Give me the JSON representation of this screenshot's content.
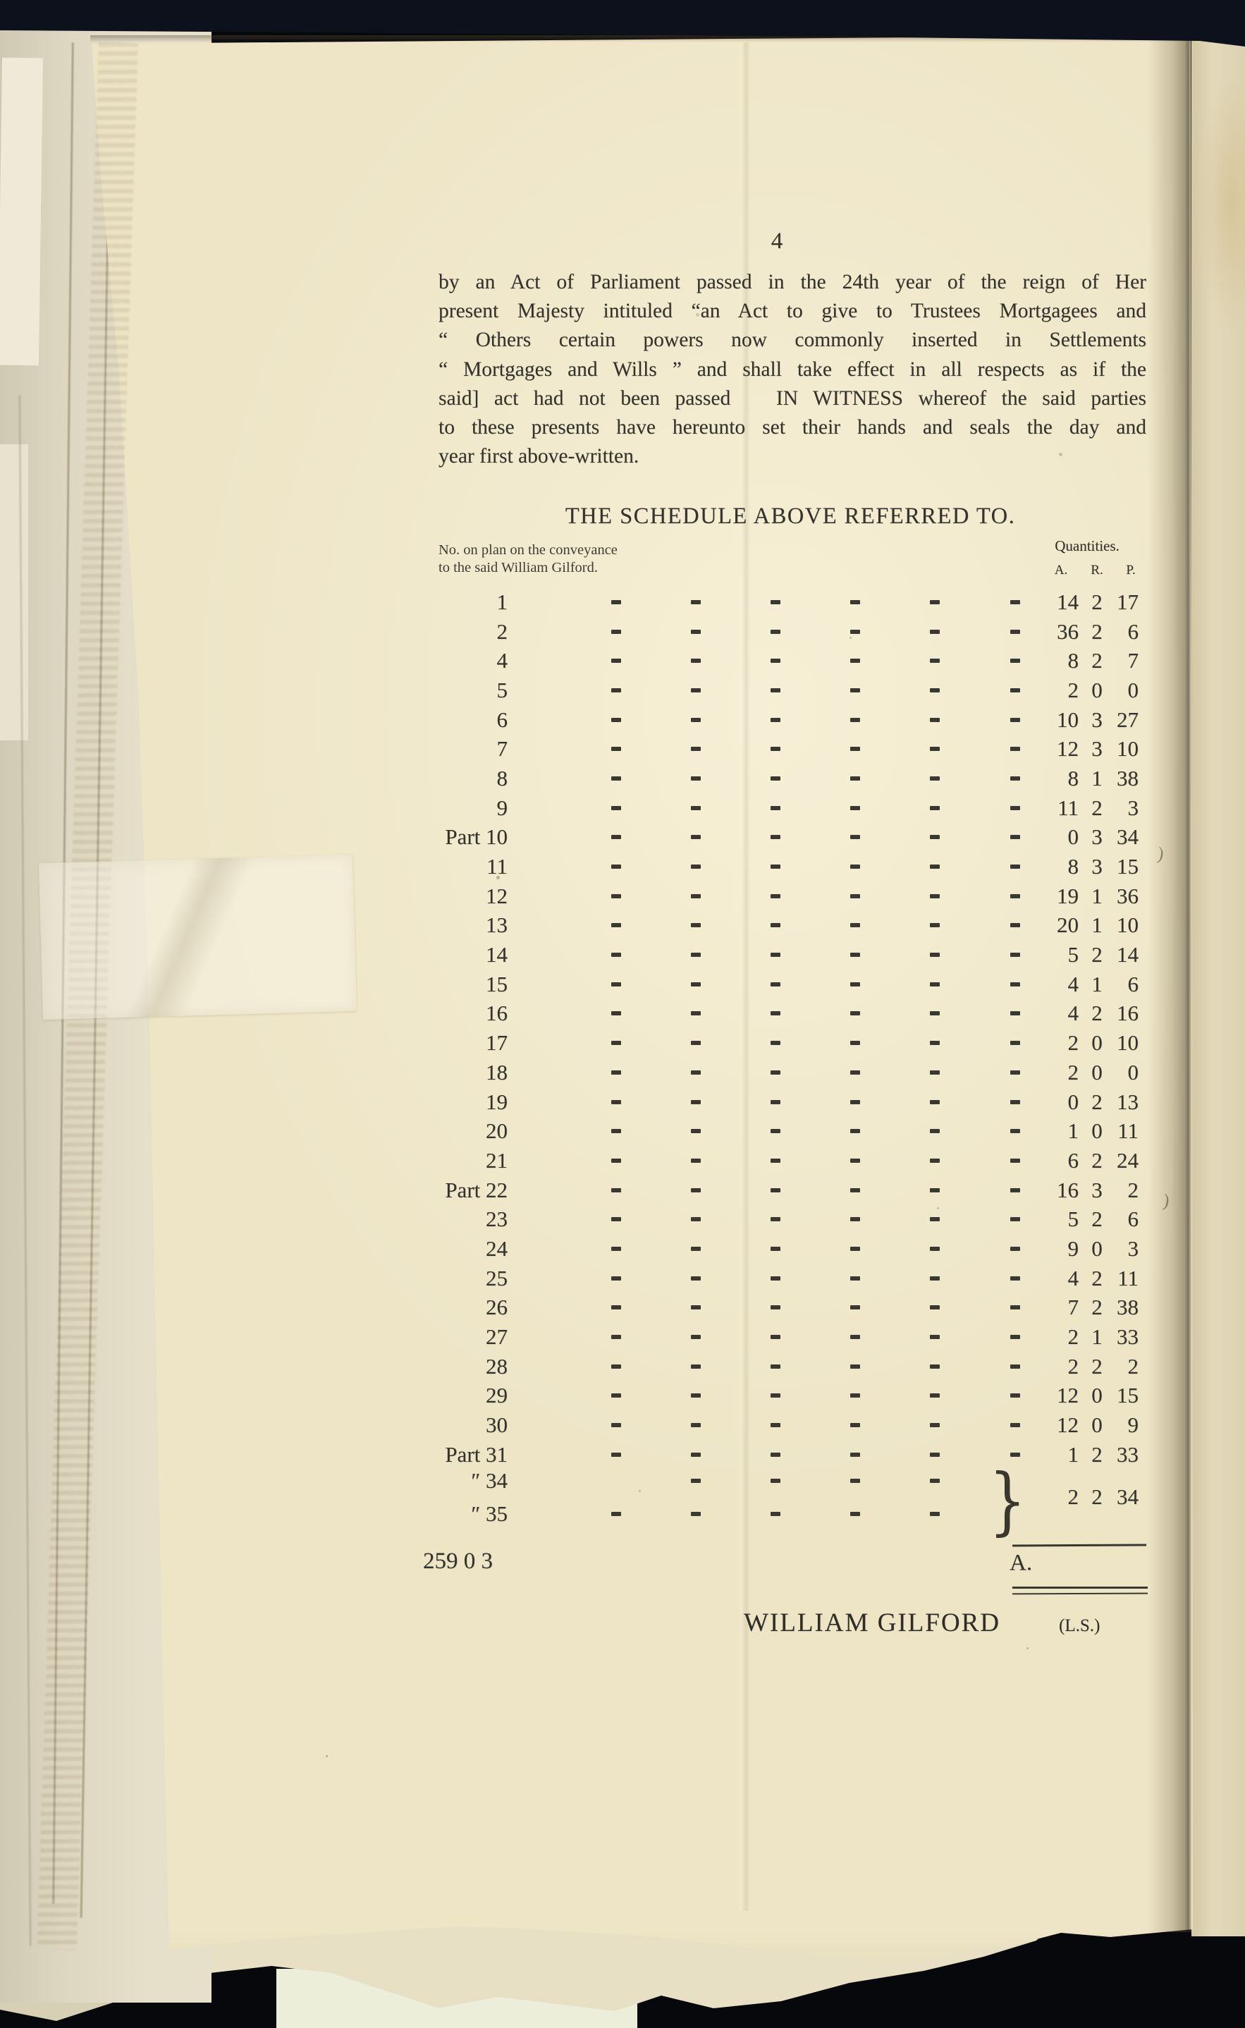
{
  "page": {
    "number": "4",
    "paragraph_lines": [
      "by an Act of Parliament passed in the 24th year of the reign of Her",
      "present Majesty intituled “an Act to give to Trustees Mortgagees and",
      "“ Others certain powers now commonly inserted in Settlements",
      "“ Mortgages and Wills ” and shall take effect in all respects as if the",
      "said] act had not been passed   IN WITNESS whereof the said parties",
      "to these presents have hereunto set their hands and seals the day and",
      "year first above-written."
    ],
    "schedule_title": "THE SCHEDULE ABOVE REFERRED TO.",
    "table": {
      "left_header_line1": "No. on plan on the conveyance",
      "left_header_line2": "to the said William Gilford.",
      "right_header": "Quantities.",
      "unit_headers": [
        "A.",
        "R.",
        "P."
      ],
      "rows": [
        {
          "plan": "1",
          "a": "14",
          "r": "2",
          "p": "17"
        },
        {
          "plan": "2",
          "a": "36",
          "r": "2",
          "p": "6"
        },
        {
          "plan": "4",
          "a": "8",
          "r": "2",
          "p": "7"
        },
        {
          "plan": "5",
          "a": "2",
          "r": "0",
          "p": "0"
        },
        {
          "plan": "6",
          "a": "10",
          "r": "3",
          "p": "27"
        },
        {
          "plan": "7",
          "a": "12",
          "r": "3",
          "p": "10"
        },
        {
          "plan": "8",
          "a": "8",
          "r": "1",
          "p": "38"
        },
        {
          "plan": "9",
          "a": "11",
          "r": "2",
          "p": "3"
        },
        {
          "plan": "Part 10",
          "a": "0",
          "r": "3",
          "p": "34"
        },
        {
          "plan": "11",
          "a": "8",
          "r": "3",
          "p": "15"
        },
        {
          "plan": "12",
          "a": "19",
          "r": "1",
          "p": "36"
        },
        {
          "plan": "13",
          "a": "20",
          "r": "1",
          "p": "10"
        },
        {
          "plan": "14",
          "a": "5",
          "r": "2",
          "p": "14"
        },
        {
          "plan": "15",
          "a": "4",
          "r": "1",
          "p": "6"
        },
        {
          "plan": "16",
          "a": "4",
          "r": "2",
          "p": "16"
        },
        {
          "plan": "17",
          "a": "2",
          "r": "0",
          "p": "10"
        },
        {
          "plan": "18",
          "a": "2",
          "r": "0",
          "p": "0"
        },
        {
          "plan": "19",
          "a": "0",
          "r": "2",
          "p": "13"
        },
        {
          "plan": "20",
          "a": "1",
          "r": "0",
          "p": "11"
        },
        {
          "plan": "21",
          "a": "6",
          "r": "2",
          "p": "24"
        },
        {
          "plan": "Part 22",
          "a": "16",
          "r": "3",
          "p": "2"
        },
        {
          "plan": "23",
          "a": "5",
          "r": "2",
          "p": "6"
        },
        {
          "plan": "24",
          "a": "9",
          "r": "0",
          "p": "3"
        },
        {
          "plan": "25",
          "a": "4",
          "r": "2",
          "p": "11"
        },
        {
          "plan": "26",
          "a": "7",
          "r": "2",
          "p": "38"
        },
        {
          "plan": "27",
          "a": "2",
          "r": "1",
          "p": "33"
        },
        {
          "plan": "28",
          "a": "2",
          "r": "2",
          "p": "2"
        },
        {
          "plan": "29",
          "a": "12",
          "r": "0",
          "p": "15"
        },
        {
          "plan": "30",
          "a": "12",
          "r": "0",
          "p": "9"
        },
        {
          "plan": "Part 31",
          "a": "1",
          "r": "2",
          "p": "33"
        },
        {
          "plan": "″ 34",
          "a": "",
          "r": "",
          "p": "",
          "dash_positions": [
            1,
            2,
            3,
            4
          ]
        },
        {
          "plan": "″ 35",
          "a": "",
          "r": "",
          "p": "",
          "dash_positions": [
            0,
            1,
            2,
            3,
            4
          ]
        }
      ],
      "brace_glyph": "}",
      "braced_value": {
        "a": "2",
        "r": "2",
        "p": "34"
      },
      "total": {
        "prefix": "A.",
        "a": "259",
        "r": "0",
        "p": "3"
      }
    },
    "signature": {
      "name": "WILLIAM GILFORD",
      "seal": "(L.S.)"
    },
    "stray_marks": [
      ")",
      ")"
    ]
  },
  "colors": {
    "paper_cream": "#eee5c7",
    "under_paper": "#e8e0c4",
    "ink": "#34322a",
    "background_black": "#0d111c",
    "pale_strip": "#eceeda"
  }
}
